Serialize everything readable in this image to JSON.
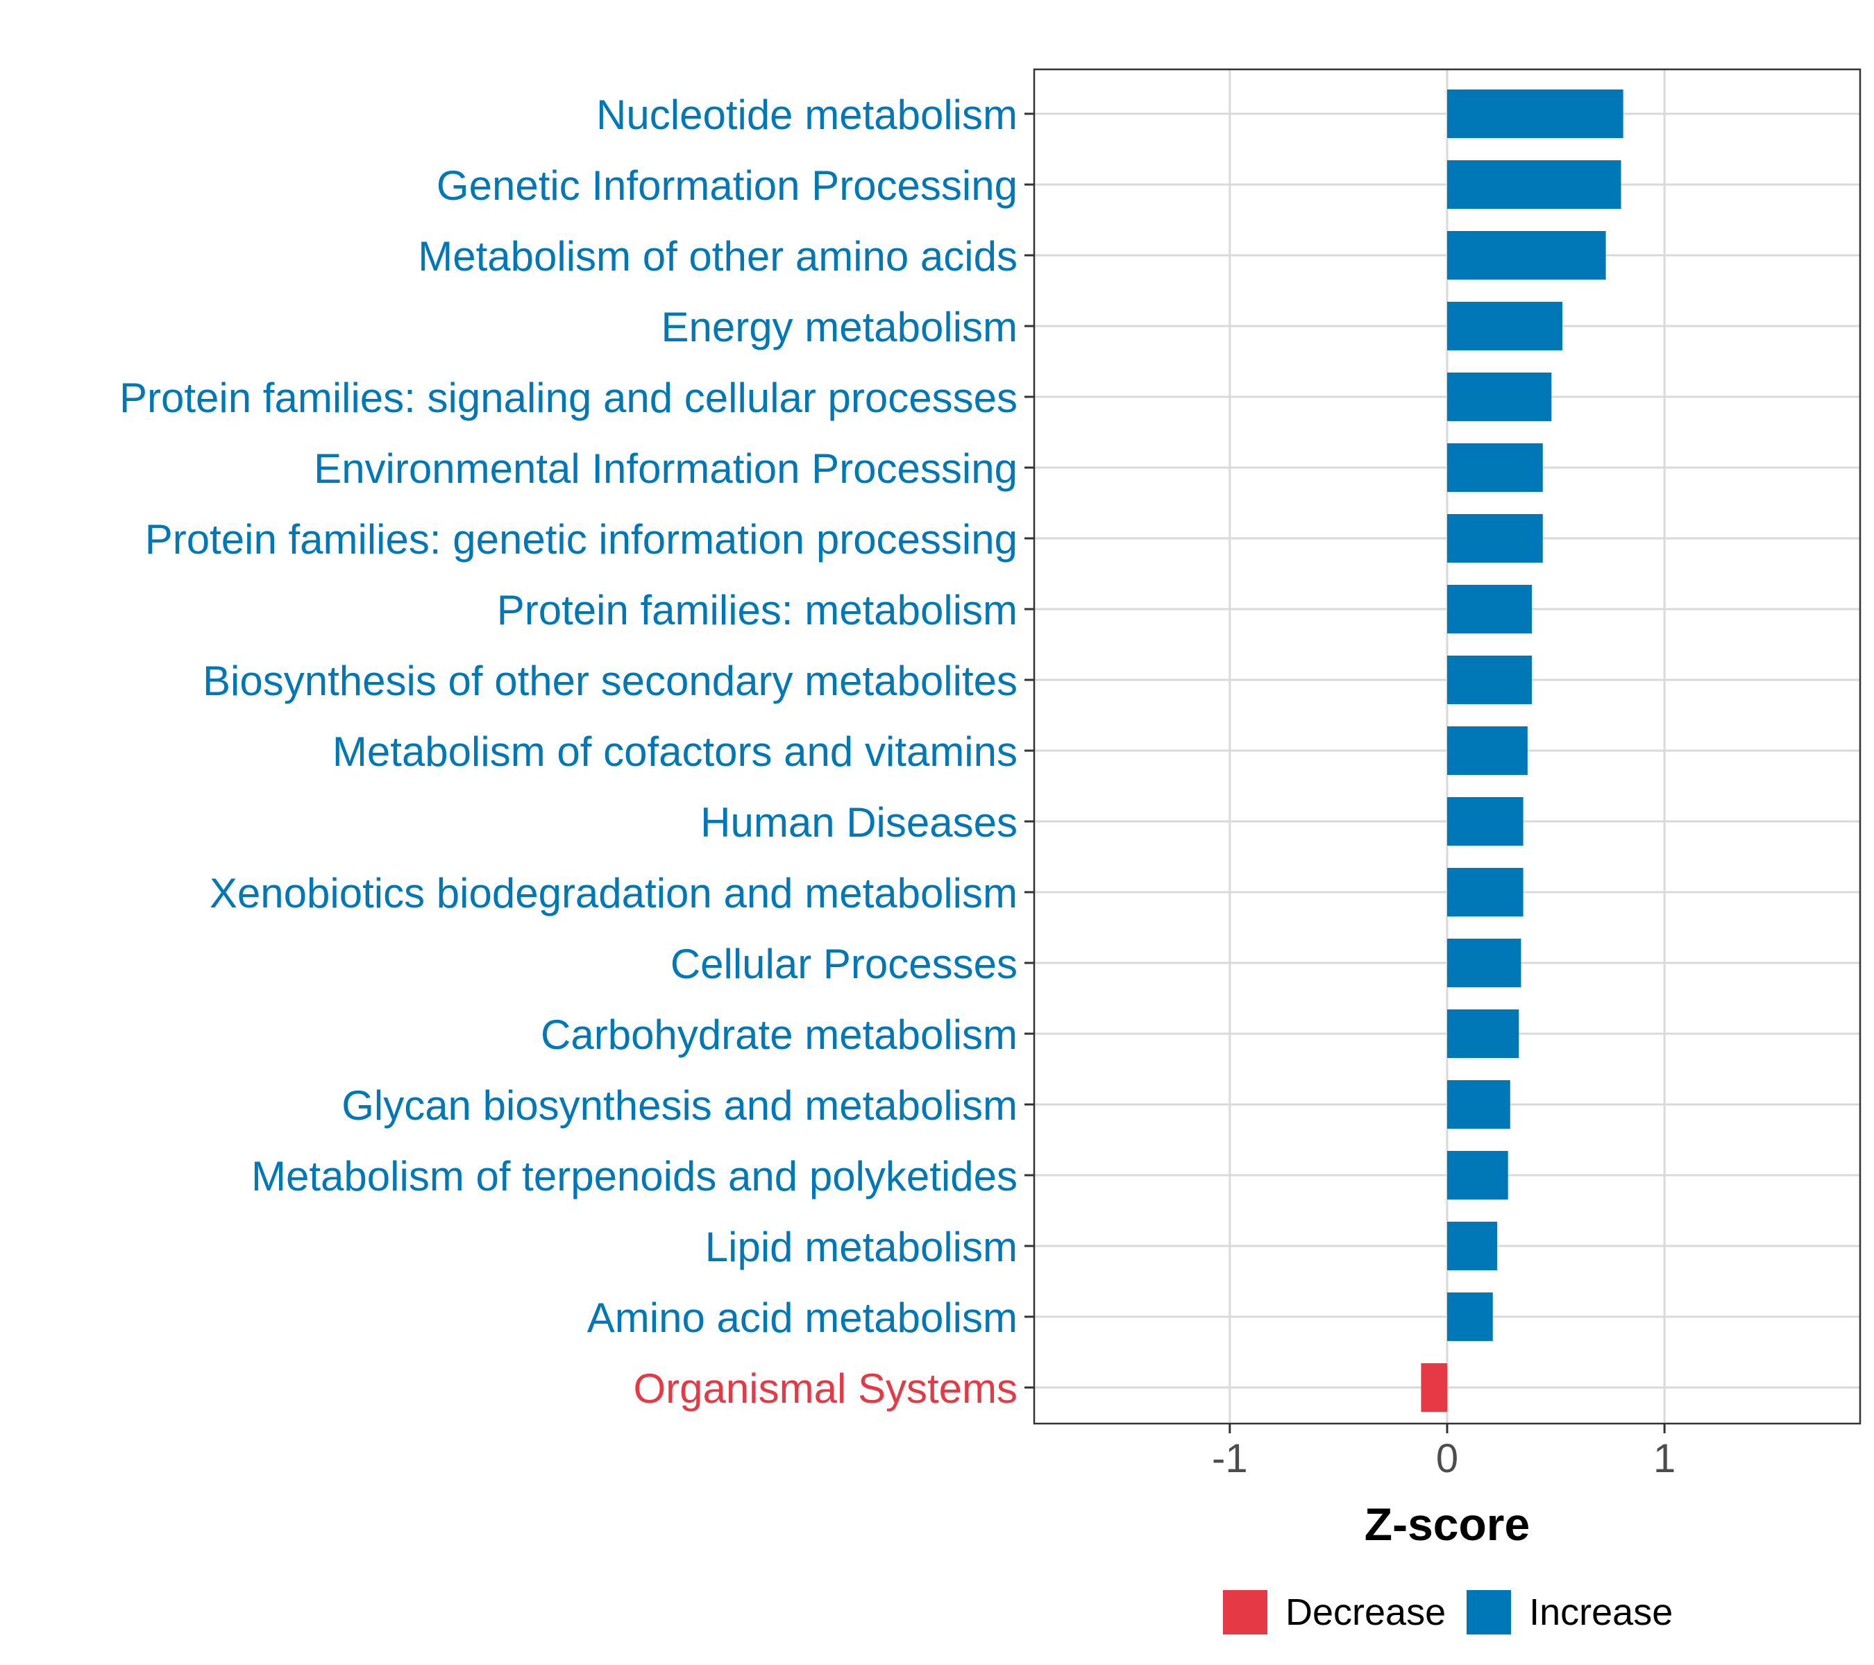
{
  "chart_data": {
    "type": "bar",
    "orientation": "horizontal",
    "xlabel": "Z-score",
    "ylabel": "",
    "xlim": [
      -1.9,
      1.9
    ],
    "x_ticks": [
      -1,
      0,
      1
    ],
    "x_tick_labels": [
      "-1",
      "0",
      "1"
    ],
    "grid": true,
    "legend_position": "bottom",
    "categories": [
      "Nucleotide metabolism",
      "Genetic Information Processing",
      "Metabolism of other amino acids",
      "Energy metabolism",
      "Protein families: signaling and cellular processes",
      "Environmental Information Processing",
      "Protein families: genetic information processing",
      "Protein families: metabolism",
      "Biosynthesis of other secondary metabolites",
      "Metabolism of cofactors and vitamins",
      "Human Diseases",
      "Xenobiotics biodegradation and metabolism",
      "Cellular Processes",
      "Carbohydrate metabolism",
      "Glycan biosynthesis and metabolism",
      "Metabolism of terpenoids and polyketides",
      "Lipid metabolism",
      "Amino acid metabolism",
      "Organismal Systems"
    ],
    "values": [
      0.81,
      0.8,
      0.73,
      0.53,
      0.48,
      0.44,
      0.44,
      0.39,
      0.39,
      0.37,
      0.35,
      0.35,
      0.34,
      0.33,
      0.29,
      0.28,
      0.23,
      0.21,
      -0.12
    ],
    "groups": [
      "Increase",
      "Increase",
      "Increase",
      "Increase",
      "Increase",
      "Increase",
      "Increase",
      "Increase",
      "Increase",
      "Increase",
      "Increase",
      "Increase",
      "Increase",
      "Increase",
      "Increase",
      "Increase",
      "Increase",
      "Increase",
      "Decrease"
    ],
    "legend": [
      {
        "label": "Decrease",
        "color": "#E63946"
      },
      {
        "label": "Increase",
        "color": "#0077B6"
      }
    ]
  },
  "colors": {
    "increase": "#0077B6",
    "decrease": "#E63946",
    "grid": "#D9D9D9",
    "axis": "#333333",
    "tick_text": "#4D4D4D"
  }
}
